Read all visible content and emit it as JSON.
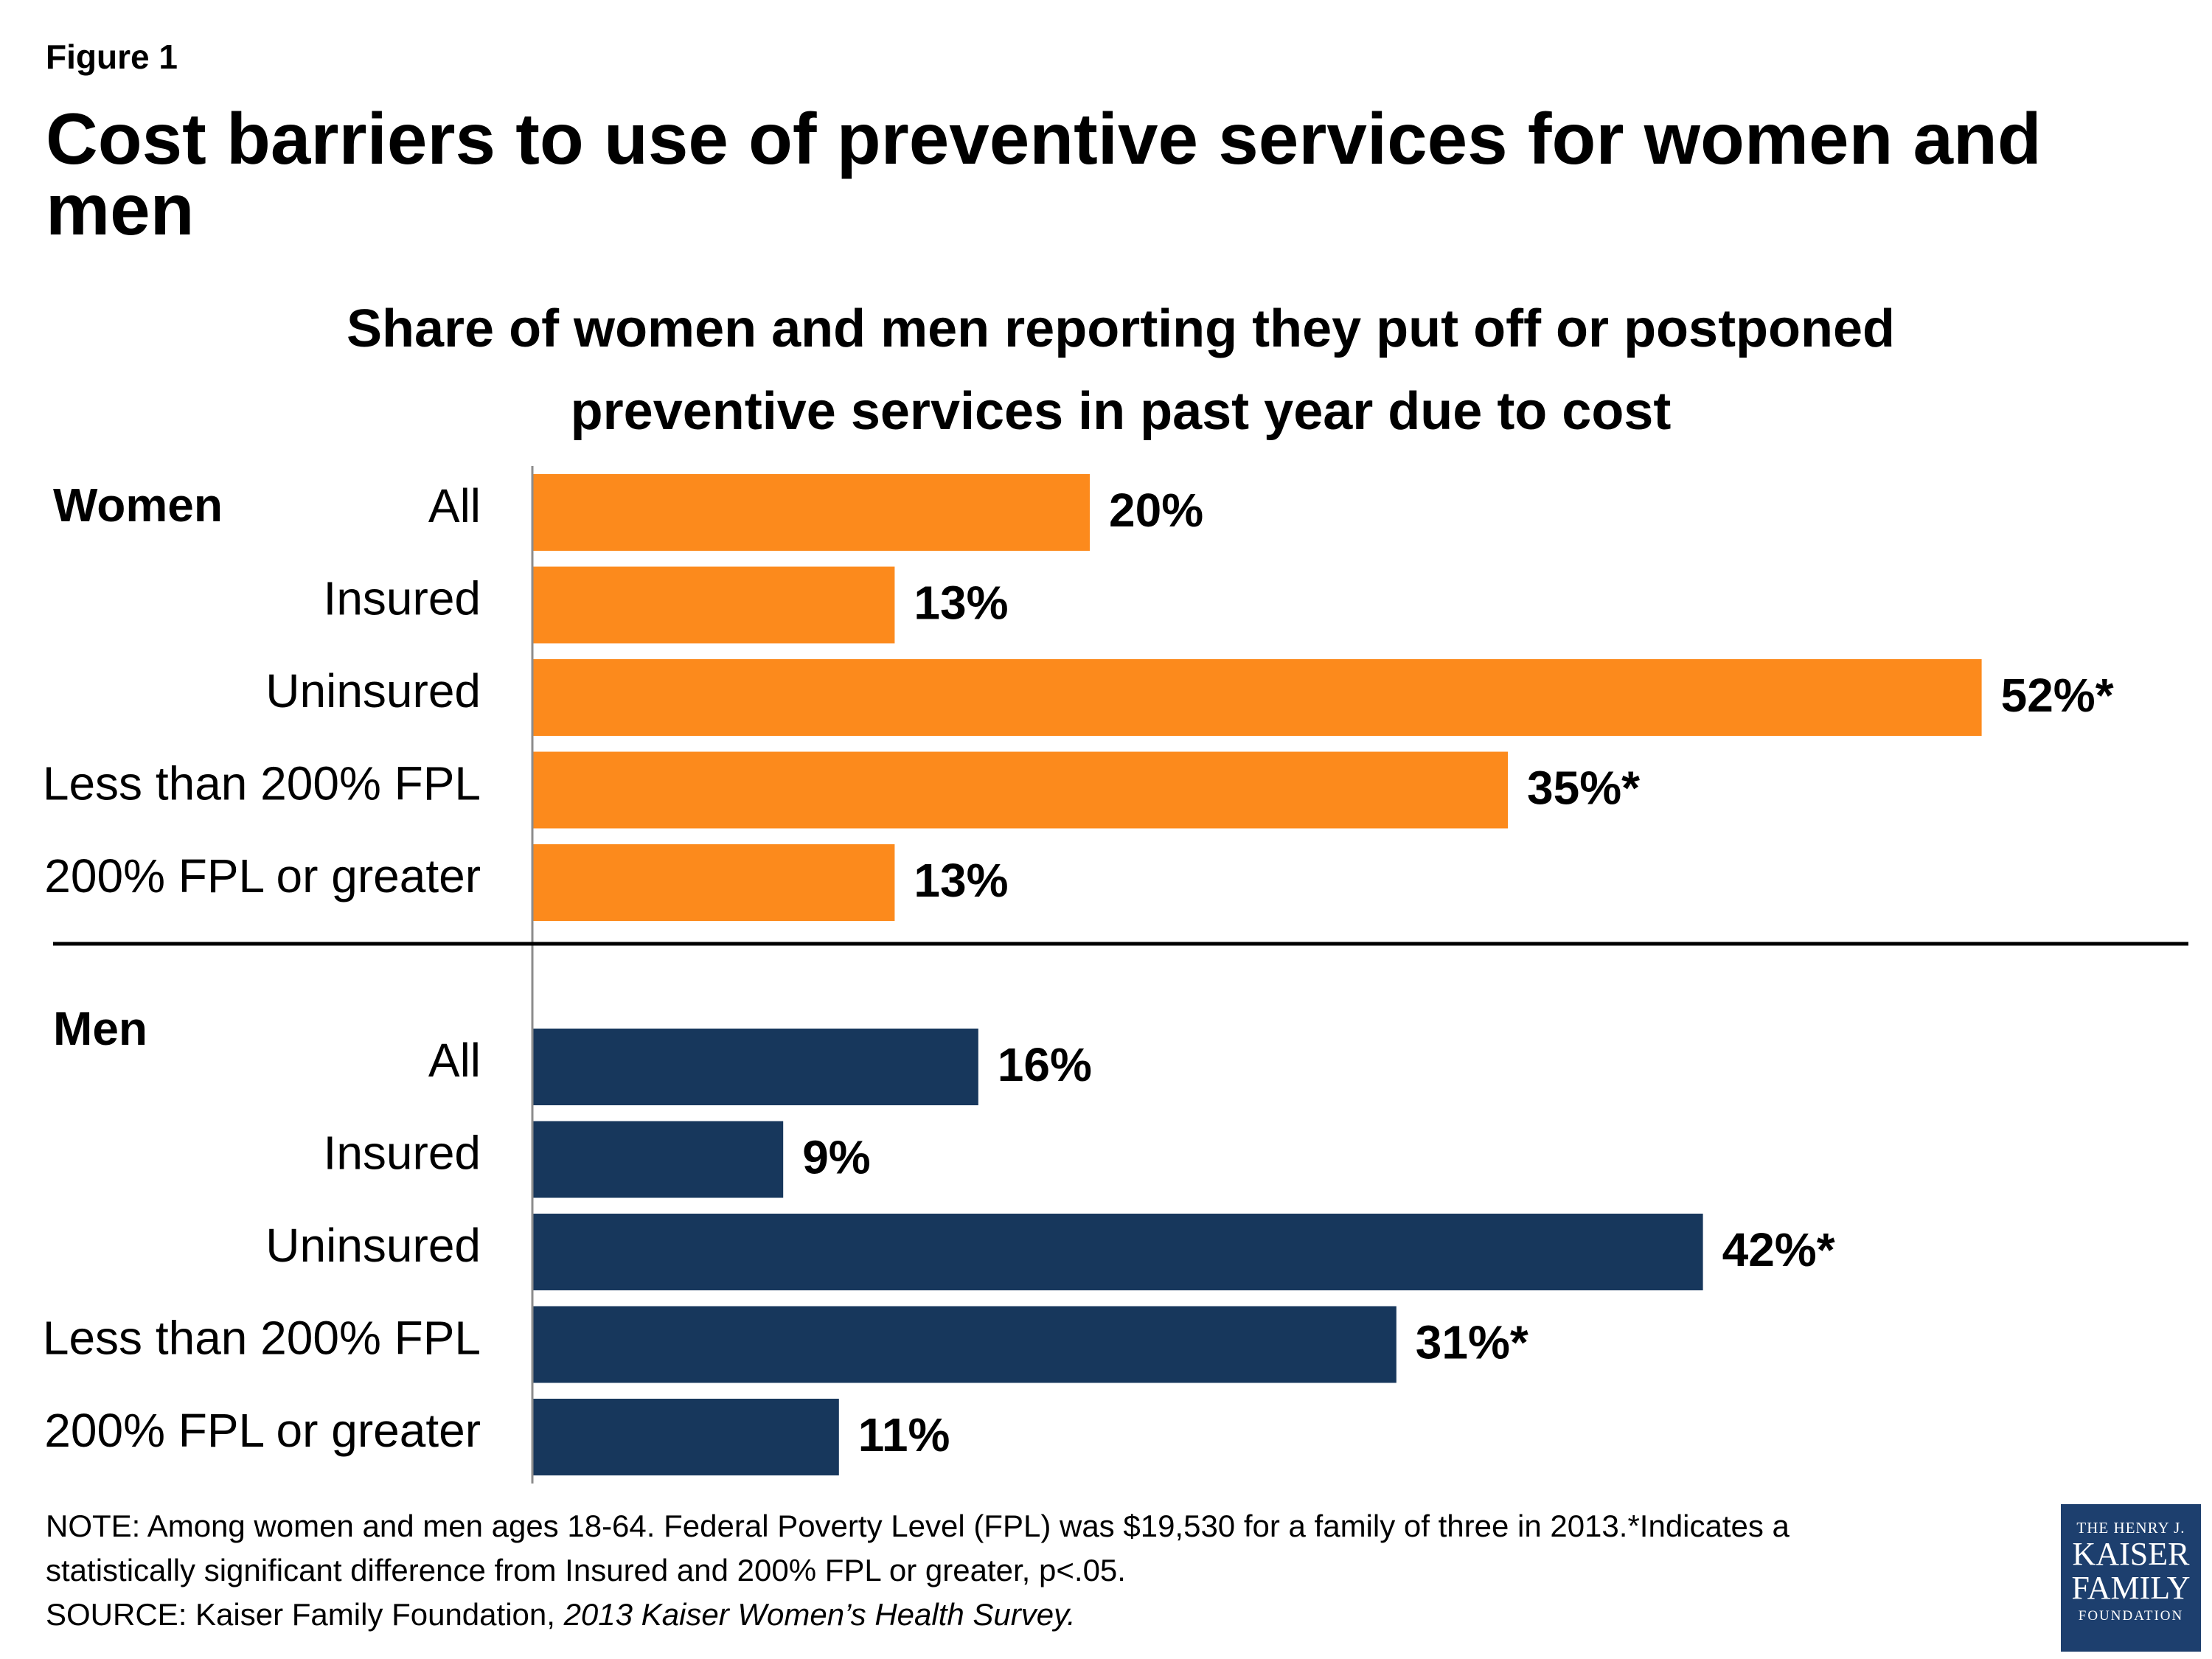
{
  "figure_label": "Figure 1",
  "title": "Cost barriers to use of preventive services for women and men",
  "subtitle_line1": "Share of women and men reporting they put off or postponed",
  "subtitle_line2": "preventive services in past year due to cost",
  "chart_data": {
    "type": "bar",
    "orientation": "horizontal",
    "title": "Share of women and men reporting they put off or postponed preventive services in past year due to cost",
    "xlim": [
      0,
      55
    ],
    "grid": false,
    "groups": [
      {
        "name": "Women",
        "color": "#fc8a1c",
        "categories": [
          "All",
          "Insured",
          "Uninsured",
          "Less than 200% FPL",
          "200% FPL or greater"
        ],
        "values": [
          20,
          13,
          52,
          35,
          13
        ],
        "labels": [
          "20%",
          "13%",
          "52%*",
          "35%*",
          "13%"
        ]
      },
      {
        "name": "Men",
        "color": "#17375c",
        "categories": [
          "All",
          "Insured",
          "Uninsured",
          "Less than 200% FPL",
          "200% FPL or greater"
        ],
        "values": [
          16,
          9,
          42,
          31,
          11
        ],
        "labels": [
          "16%",
          "9%",
          "42%*",
          "31%*",
          "11%"
        ]
      }
    ]
  },
  "notes": {
    "note_line1": "NOTE: Among women and men ages 18-64.  Federal Poverty Level (FPL) was $19,530 for a family of three in 2013.*Indicates a",
    "note_line2": "statistically significant difference from Insured and 200% FPL or greater, p<.05.",
    "source_prefix": "SOURCE: Kaiser Family Foundation, ",
    "source_title": "2013 Kaiser Women’s Health Survey."
  },
  "logo": {
    "line1": "THE HENRY J.",
    "line2": "KAISER",
    "line3": "FAMILY",
    "line4": "FOUNDATION"
  }
}
